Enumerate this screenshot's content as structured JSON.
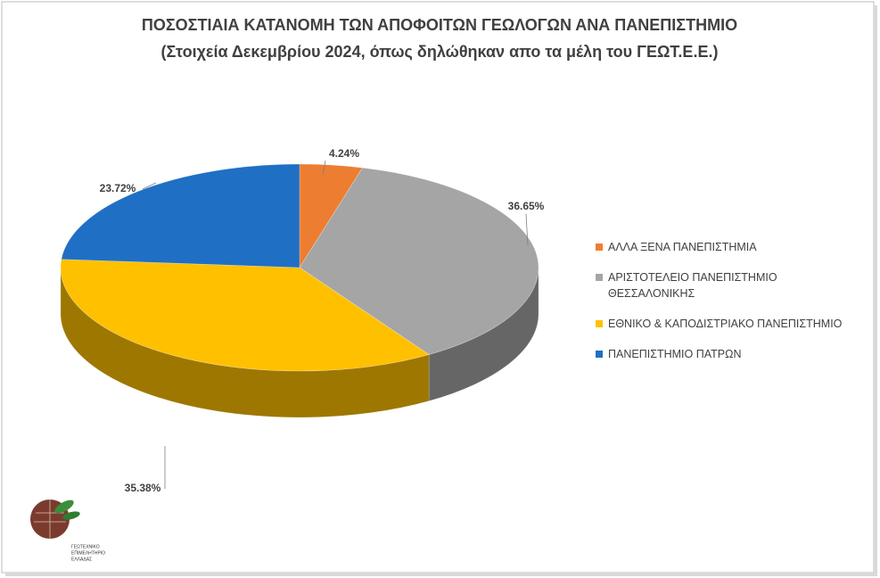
{
  "chart_data": {
    "type": "pie",
    "title": "ΠΟΣΟΣΤΙΑΙΑ ΚΑΤΑΝΟΜΗ ΤΩΝ ΑΠΟΦΟΙΤΩΝ ΓΕΩΛΟΓΩΝ ΑΝΑ ΠΑΝΕΠΙΣΤΗΜΙΟ",
    "subtitle": "(Στοιχεία Δεκεμβρίου 2024, όπως δηλώθηκαν απο τα μέλη του ΓΕΩΤ.Ε.Ε.)",
    "categories": [
      "ΑΛΛΑ ΞΕΝΑ ΠΑΝΕΠΙΣΤΗΜΙΑ",
      "ΑΡΙΣΤΟΤΕΛΕΙΟ ΠΑΝΕΠΙΣΤΗΜΙΟ ΘΕΣΣΑΛΟΝΙΚΗΣ",
      "ΕΘΝΙΚΟ & ΚΑΠΟΔΙΣΤΡΙΑΚΟ ΠΑΝΕΠΙΣΤΗΜΙΟ",
      "ΠΑΝΕΠΙΣΤΗΜΙΟ ΠΑΤΡΩΝ"
    ],
    "values": [
      4.24,
      36.65,
      35.38,
      23.72
    ],
    "value_labels": [
      "4.24%",
      "36.65%",
      "35.38%",
      "23.72%"
    ],
    "colors": [
      "#ed7d31",
      "#a5a5a5",
      "#ffc000",
      "#1f6fc5"
    ],
    "legend": "right"
  },
  "logo_text": [
    "ΓΕΩΤΕΧΝΙΚΟ",
    "ΕΠΙΜΕΛΗΤΗΡΙΟ",
    "ΕΛΛΑΔΑΣ"
  ]
}
